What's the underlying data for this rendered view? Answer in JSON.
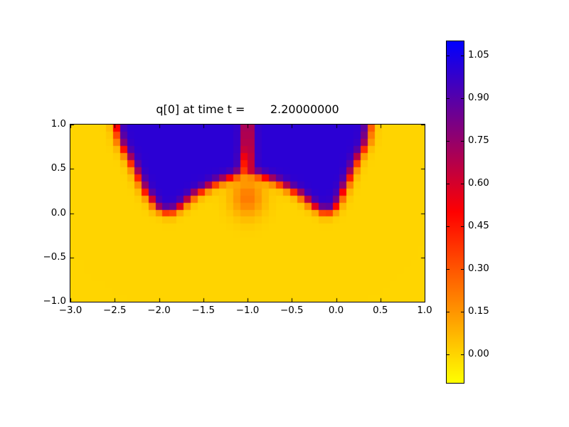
{
  "figure": {
    "background": "#ffffff"
  },
  "chart_data": {
    "type": "heatmap",
    "title": "q[0] at time t =       2.20000000",
    "xlabel": "",
    "ylabel": "",
    "xlim": [
      -3.0,
      1.0
    ],
    "ylim": [
      -1.0,
      1.0
    ],
    "grid": false,
    "xtick_values": [
      -3.0,
      -2.5,
      -2.0,
      -1.5,
      -1.0,
      -0.5,
      0.0,
      0.5,
      1.0
    ],
    "xtick_labels": [
      "−3.0",
      "−2.5",
      "−2.0",
      "−1.5",
      "−1.0",
      "−0.5",
      "0.0",
      "0.5",
      "1.0"
    ],
    "ytick_values": [
      1.0,
      0.5,
      0.0,
      -0.5,
      -1.0
    ],
    "ytick_labels": [
      "1.0",
      "0.5",
      "0.0",
      "−0.5",
      "−1.0"
    ],
    "colorbar": {
      "position": "right",
      "vmin": -0.1,
      "vmax": 1.1,
      "tick_values": [
        0.0,
        0.15,
        0.3,
        0.45,
        0.6,
        0.75,
        0.9,
        1.05
      ],
      "tick_labels": [
        "0.00",
        "0.15",
        "0.30",
        "0.45",
        "0.60",
        "0.75",
        "0.90",
        "1.05"
      ],
      "colormap_name": "yellow-red-blue",
      "colormap_stops": [
        [
          0.0,
          "#ffff00"
        ],
        [
          0.5,
          "#ff0000"
        ],
        [
          1.0,
          "#0000ff"
        ]
      ]
    },
    "field": {
      "description": "q is ~1.0 inside two blue lobes in the upper part of the domain separated by a narrow low-value slit at x=-1, and ~0.0 (yellow) elsewhere; fronts are smeared over ~0.2 units with a diffuse fan under the central notch",
      "grid_nx": 50,
      "grid_ny": 25,
      "outside_value": 0.0,
      "inside_value": 1.0,
      "front_halfwidth": 0.1,
      "front_steepness": 1.8,
      "lobe_polygons": [
        [
          [
            -2.52,
            1.3
          ],
          [
            -2.49,
            1.0
          ],
          [
            -2.44,
            0.8
          ],
          [
            -2.3,
            0.55
          ],
          [
            -2.16,
            0.25
          ],
          [
            -2.02,
            0.06
          ],
          [
            -1.88,
            0.0
          ],
          [
            -1.76,
            0.07
          ],
          [
            -1.58,
            0.22
          ],
          [
            -1.36,
            0.34
          ],
          [
            -1.16,
            0.42
          ],
          [
            -1.06,
            0.47
          ],
          [
            -1.02,
            0.75
          ],
          [
            -1.01,
            1.3
          ]
        ],
        [
          [
            -0.99,
            1.3
          ],
          [
            -0.98,
            0.75
          ],
          [
            -0.97,
            0.47
          ],
          [
            -0.84,
            0.42
          ],
          [
            -0.64,
            0.34
          ],
          [
            -0.42,
            0.22
          ],
          [
            -0.24,
            0.07
          ],
          [
            -0.12,
            0.0
          ],
          [
            -0.02,
            0.05
          ],
          [
            0.04,
            0.15
          ],
          [
            0.13,
            0.35
          ],
          [
            0.24,
            0.6
          ],
          [
            0.35,
            0.8
          ],
          [
            0.38,
            1.0
          ],
          [
            0.41,
            1.3
          ]
        ]
      ],
      "fan_bump": {
        "amplitude": 0.22,
        "cx": -1.0,
        "cy": 0.18,
        "sx": 0.18,
        "sy": 0.22
      }
    }
  }
}
